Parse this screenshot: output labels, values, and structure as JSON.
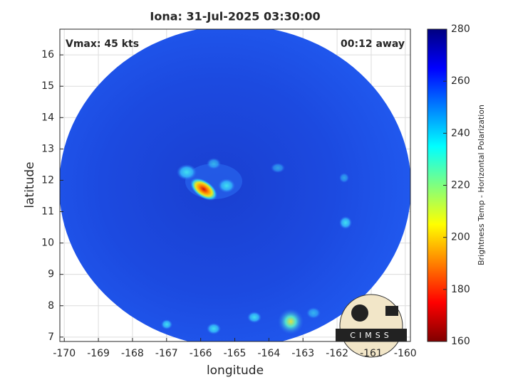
{
  "chart_data": {
    "type": "image",
    "title": "Iona: 31-Jul-2025 03:30:00",
    "annotations": [
      "Vmax: 45 kts",
      "00:12 away"
    ],
    "x_label": "longitude",
    "y_label": "latitude",
    "xlim": [
      -170.13,
      -159.85
    ],
    "ylim": [
      6.86,
      16.82
    ],
    "xticks": [
      -170,
      -169,
      -168,
      -167,
      -166,
      -165,
      -164,
      -163,
      -162,
      -161,
      -160
    ],
    "yticks": [
      7,
      8,
      9,
      10,
      11,
      12,
      13,
      14,
      15,
      16
    ],
    "grid": true,
    "colorbar": {
      "label": "Brightness Temp - Horizontal Polarization",
      "lim": [
        160,
        280
      ],
      "ticks": [
        160,
        180,
        200,
        220,
        240,
        260,
        280
      ]
    },
    "logo": "CIMSS"
  }
}
